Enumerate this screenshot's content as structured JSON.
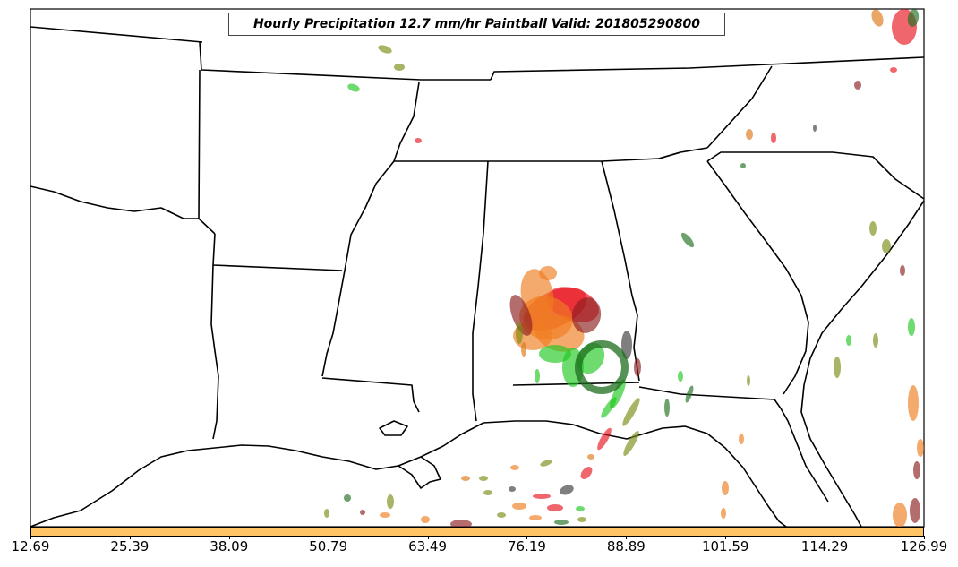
{
  "map": {
    "title": "Hourly Precipitation 12.7 mm/hr Paintball Valid: 201805290800",
    "colorbar": {
      "color": "#fec466",
      "tick_labels": [
        "12.69",
        "25.39",
        "38.09",
        "50.79",
        "63.49",
        "76.19",
        "88.89",
        "101.59",
        "114.29",
        "126.99"
      ]
    },
    "paintball_colors": [
      "#e8141e",
      "#f07d1e",
      "#1ec81e",
      "#8c1e1e",
      "#7a8c14",
      "#1e6e1e",
      "#3a3a3a",
      "#dc7814"
    ]
  }
}
